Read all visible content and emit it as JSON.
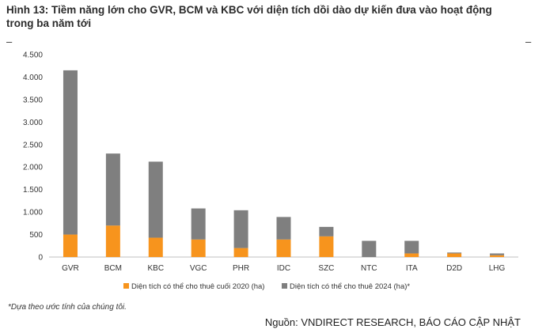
{
  "figure": {
    "title": "Hình 13: Tiềm năng lớn cho GVR, BCM và KBC với diện tích dồi dào dự kiến đưa vào hoạt động trong ba năm tới",
    "dash_left": "–",
    "dash_right": "–",
    "note": "*Dựa theo ước tính của chúng tôi.",
    "source": "Nguồn: VNDIRECT RESEARCH, BÁO CÁO CẬP NHẬT"
  },
  "chart_data": {
    "type": "bar",
    "stacked": true,
    "categories": [
      "GVR",
      "BCM",
      "KBC",
      "VGC",
      "PHR",
      "IDC",
      "SZC",
      "NTC",
      "ITA",
      "D2D",
      "LHG"
    ],
    "series": [
      {
        "name": "Diện tích có thể cho thuê cuối 2020 (ha)",
        "color": "#f7941d",
        "values": [
          500,
          700,
          430,
          390,
          200,
          390,
          460,
          0,
          80,
          80,
          40
        ]
      },
      {
        "name": "Diện tích có thể cho thuê 2024 (ha)*",
        "color": "#7f7f7f",
        "values": [
          3650,
          1600,
          1690,
          690,
          840,
          500,
          210,
          360,
          280,
          20,
          40
        ]
      }
    ],
    "ylim": [
      0,
      4500
    ],
    "yticks": [
      0,
      500,
      1000,
      1500,
      2000,
      2500,
      3000,
      3500,
      4000,
      4500
    ],
    "ytick_labels": [
      "0",
      "500",
      "1.000",
      "1.500",
      "2.000",
      "2.500",
      "3.000",
      "3.500",
      "4.000",
      "4.500"
    ],
    "xlabel": "",
    "ylabel": "",
    "legend_position": "bottom",
    "grid": false
  }
}
